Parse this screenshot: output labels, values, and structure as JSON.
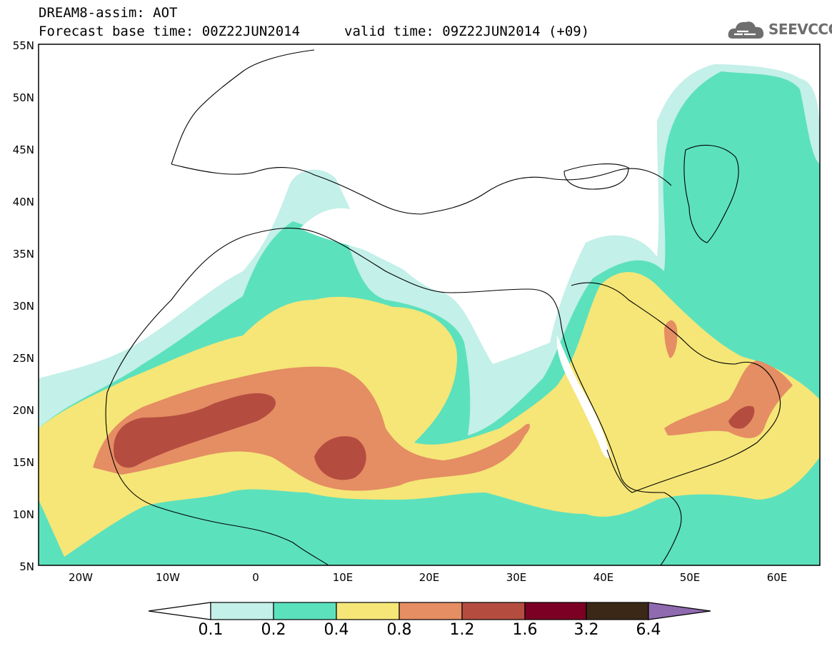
{
  "header": {
    "title": "DREAM8-assim: AOT",
    "forecast": "Forecast base time: 00Z22JUN2014",
    "valid": "valid time: 09Z22JUN2014 (+09)",
    "logo_text": "SEEVCCC"
  },
  "map": {
    "lat_labels": [
      "55N",
      "50N",
      "45N",
      "40N",
      "35N",
      "30N",
      "25N",
      "20N",
      "15N",
      "10N",
      "5N"
    ],
    "lon_labels": [
      "20W",
      "10W",
      "0",
      "10E",
      "20E",
      "30E",
      "40E",
      "50E",
      "60E"
    ],
    "lat_range": [
      5,
      55
    ],
    "lon_range": [
      -25,
      65
    ]
  },
  "legend": {
    "levels": [
      "0.1",
      "0.2",
      "0.4",
      "0.8",
      "1.2",
      "1.6",
      "3.2",
      "6.4"
    ],
    "colors": {
      "below": "#ffffff",
      "c1": "#c3f0e8",
      "c2": "#5ce1bd",
      "c3": "#f5e677",
      "c4": "#e58d63",
      "c5": "#b44d40",
      "c6": "#7b0024",
      "c7": "#3b2817",
      "above": "#8f6aaf"
    }
  }
}
